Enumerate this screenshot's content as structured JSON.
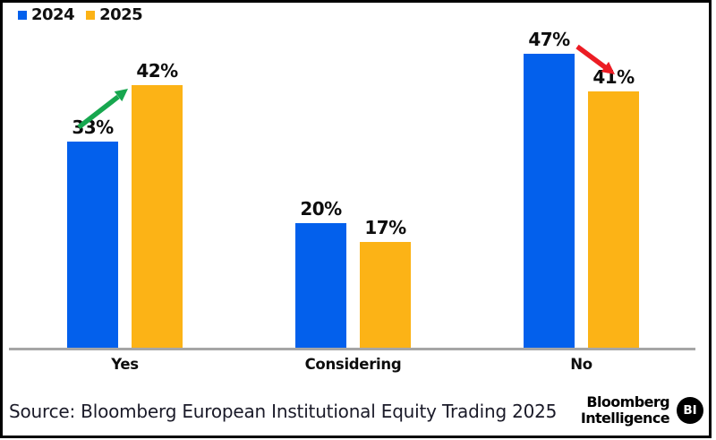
{
  "frame": {
    "border_color": "#000000",
    "background": "#ffffff"
  },
  "chart_data": {
    "type": "bar",
    "categories": [
      "Yes",
      "Considering",
      "No"
    ],
    "series": [
      {
        "name": "2024",
        "color": "#0360ec",
        "values": [
          33,
          20,
          47
        ]
      },
      {
        "name": "2025",
        "color": "#fcb316",
        "values": [
          42,
          17,
          41
        ]
      }
    ],
    "value_labels": [
      [
        "33%",
        "20%",
        "47%"
      ],
      [
        "42%",
        "17%",
        "41%"
      ]
    ],
    "title": "",
    "xlabel": "",
    "ylabel": "",
    "ylim": [
      0,
      50
    ],
    "grid": false,
    "legend_position": "top-left",
    "axis_line_color": "#a6a6a6",
    "annotations": [
      {
        "type": "arrow",
        "direction": "up",
        "color": "#17a74f",
        "category": "Yes",
        "from_value": 33,
        "to_value": 42
      },
      {
        "type": "arrow",
        "direction": "down",
        "color": "#ec1c24",
        "category": "No",
        "from_value": 47,
        "to_value": 41
      }
    ]
  },
  "footer": {
    "source_text": "Source: Bloomberg European Institutional Equity Trading 2025",
    "brand": {
      "line1": "Bloomberg",
      "line2": "Intelligence",
      "badge": "BI"
    }
  }
}
